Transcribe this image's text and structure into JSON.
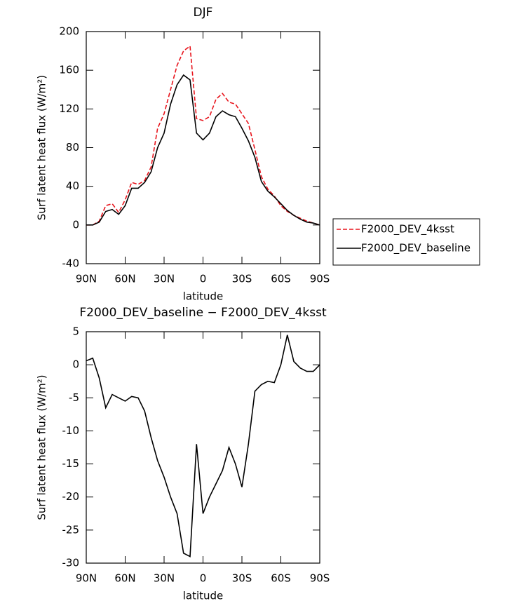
{
  "chart_data": [
    {
      "type": "line",
      "title": "DJF",
      "xlabel": "latitude",
      "ylabel": "Surf latent heat flux (W/m²)",
      "x": [
        90,
        85,
        80,
        75,
        70,
        65,
        60,
        55,
        50,
        45,
        40,
        35,
        30,
        25,
        20,
        15,
        10,
        5,
        0,
        -5,
        -10,
        -15,
        -20,
        -25,
        -30,
        -35,
        -40,
        -45,
        -50,
        -55,
        -60,
        -65,
        -70,
        -75,
        -80,
        -85,
        -90
      ],
      "series": [
        {
          "name": "F2000_DEV_4ksst",
          "color": "#e8141c",
          "linestyle": "dashed",
          "values": [
            0,
            0,
            4,
            20,
            22,
            13,
            26,
            44,
            42,
            46,
            60,
            100,
            115,
            140,
            165,
            180,
            185,
            110,
            108,
            112,
            130,
            136,
            127,
            125,
            115,
            105,
            78,
            50,
            37,
            30,
            20,
            14,
            10,
            7,
            4,
            2,
            0
          ]
        },
        {
          "name": "F2000_DEV_baseline",
          "color": "#000000",
          "linestyle": "solid",
          "values": [
            0,
            0,
            3,
            14,
            16,
            11,
            20,
            38,
            38,
            44,
            55,
            80,
            95,
            125,
            145,
            155,
            150,
            95,
            88,
            95,
            112,
            118,
            114,
            112,
            100,
            87,
            70,
            45,
            35,
            29,
            22,
            15,
            10,
            6,
            3,
            2,
            0
          ]
        }
      ],
      "xlim": [
        90,
        -90
      ],
      "xticks": [
        {
          "value": 90,
          "label": "90N"
        },
        {
          "value": 60,
          "label": "60N"
        },
        {
          "value": 30,
          "label": "30N"
        },
        0,
        {
          "value": -30,
          "label": "30S"
        },
        {
          "value": -60,
          "label": "60S"
        },
        {
          "value": -90,
          "label": "90S"
        }
      ],
      "ylim": [
        -40,
        200
      ],
      "yticks": [
        -40,
        0,
        40,
        80,
        120,
        160,
        200
      ],
      "legend": "outside-right"
    },
    {
      "type": "line",
      "title": "F2000_DEV_baseline − F2000_DEV_4ksst",
      "xlabel": "latitude",
      "ylabel": "Surf latent heat flux (W/m²)",
      "x": [
        90,
        85,
        80,
        75,
        70,
        65,
        60,
        55,
        50,
        45,
        40,
        35,
        30,
        25,
        20,
        15,
        10,
        5,
        0,
        -5,
        -10,
        -15,
        -20,
        -25,
        -30,
        -35,
        -40,
        -45,
        -50,
        -55,
        -60,
        -65,
        -70,
        -75,
        -80,
        -85,
        -90
      ],
      "series": [
        {
          "color": "#000000",
          "linestyle": "solid",
          "values": [
            0.6,
            1,
            -2,
            -6.5,
            -4.5,
            -5,
            -5.5,
            -4.8,
            -5,
            -7,
            -11,
            -14.5,
            -17,
            -20,
            -22.5,
            -28.5,
            -29,
            -12,
            -22.5,
            -20,
            -18,
            -16,
            -12.5,
            -15,
            -18.5,
            -12,
            -4,
            -3,
            -2.5,
            -2.7,
            0,
            4.5,
            0.5,
            -0.5,
            -1,
            -1,
            0
          ]
        }
      ],
      "xlim": [
        90,
        -90
      ],
      "xticks": [
        {
          "value": 90,
          "label": "90N"
        },
        {
          "value": 60,
          "label": "60N"
        },
        {
          "value": 30,
          "label": "30N"
        },
        0,
        {
          "value": -30,
          "label": "30S"
        },
        {
          "value": -60,
          "label": "60S"
        },
        {
          "value": -90,
          "label": "90S"
        }
      ],
      "ylim": [
        -30,
        5
      ],
      "yticks": [
        -30,
        -25,
        -20,
        -15,
        -10,
        -5,
        0,
        5
      ]
    }
  ]
}
